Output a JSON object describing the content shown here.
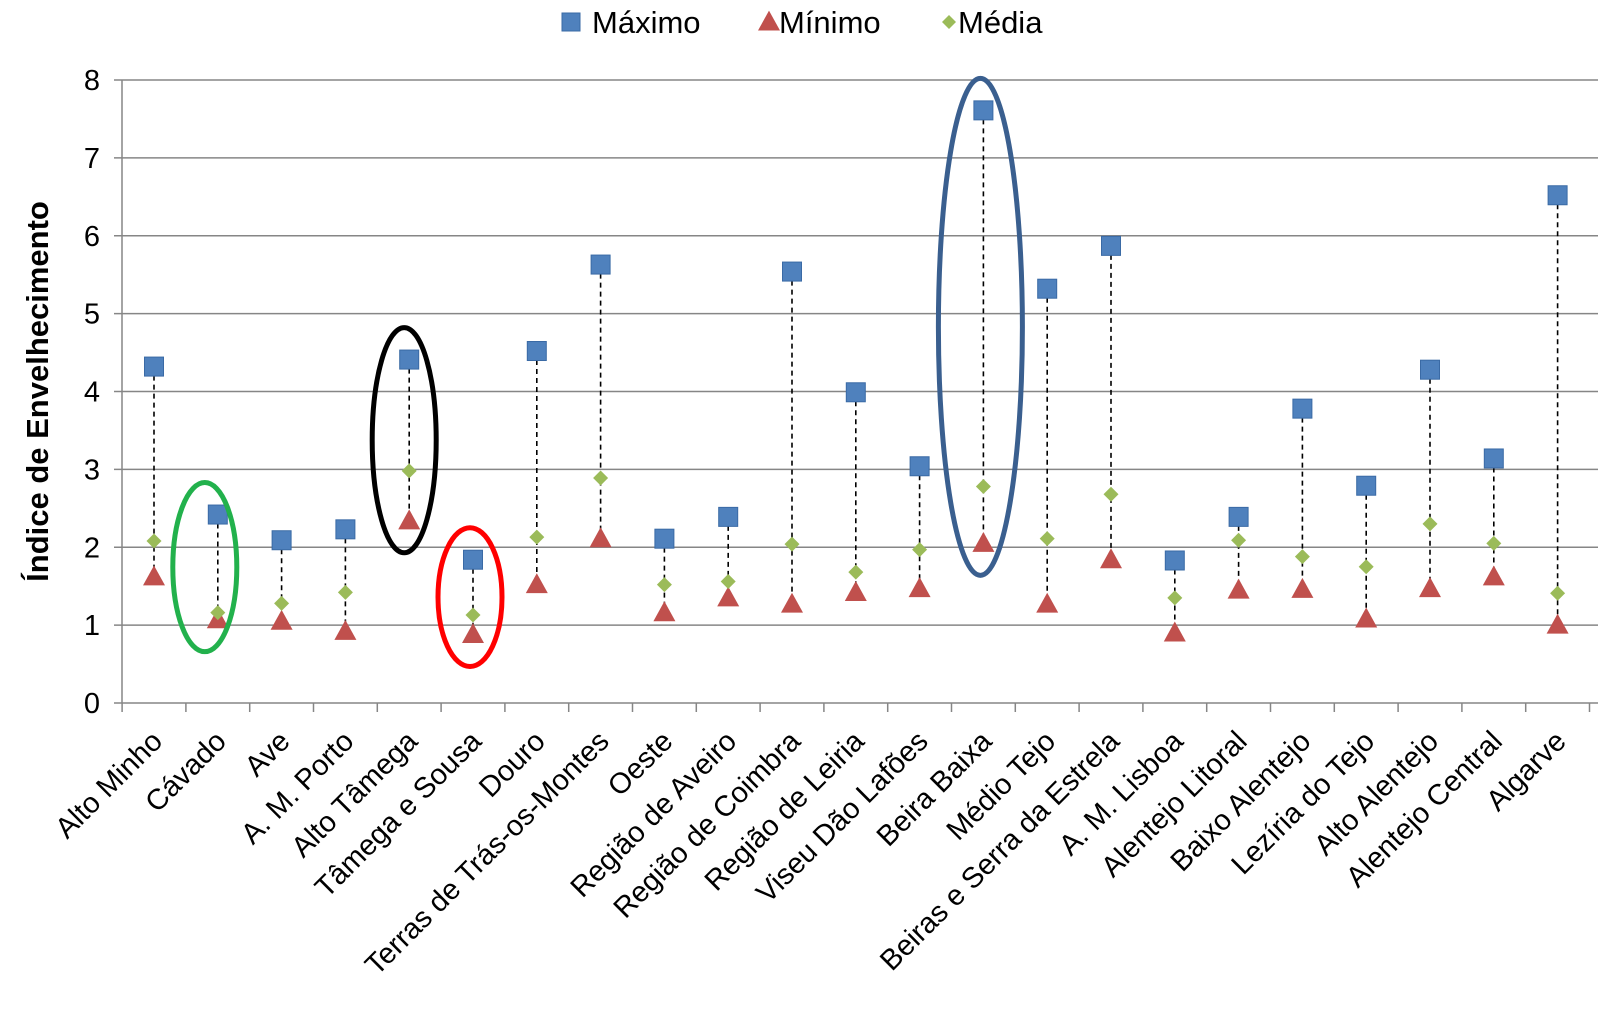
{
  "chart_data": {
    "type": "scatter",
    "title": "",
    "xlabel": "",
    "ylabel": "Índice de Envelhecimento",
    "ylim": [
      0,
      8
    ],
    "yticks": [
      0,
      1,
      2,
      3,
      4,
      5,
      6,
      7,
      8
    ],
    "grid": true,
    "legend": "top-center",
    "categories": [
      "Alto Minho",
      "Cávado",
      "Ave",
      "A. M. Porto",
      "Alto Tâmega",
      "Tâmega e Sousa",
      "Douro",
      "Terras de Trás-os-Montes",
      "Oeste",
      "Região de Aveiro",
      "Região de Coimbra",
      "Região de Leiria",
      "Viseu Dão Lafões",
      "Beira Baixa",
      "Médio Tejo",
      "Beiras e Serra da Estrela",
      "A. M. Lisboa",
      "Alentejo Litoral",
      "Baixo Alentejo",
      "Lezíria do Tejo",
      "Alto Alentejo",
      "Alentejo Central",
      "Algarve"
    ],
    "series": [
      {
        "name": "Máximo",
        "marker": "square",
        "color": "#4F81BD",
        "values": [
          4.32,
          2.42,
          2.09,
          2.23,
          4.41,
          1.84,
          4.52,
          5.63,
          2.11,
          2.39,
          5.54,
          3.99,
          3.04,
          7.61,
          5.32,
          5.87,
          1.83,
          2.39,
          3.78,
          2.79,
          4.28,
          3.14,
          6.52
        ]
      },
      {
        "name": "Mínimo",
        "marker": "triangle",
        "color": "#C0504D",
        "values": [
          1.62,
          1.07,
          1.05,
          0.92,
          2.34,
          0.88,
          1.52,
          2.11,
          1.16,
          1.35,
          1.27,
          1.42,
          1.47,
          2.05,
          1.27,
          1.84,
          0.9,
          1.45,
          1.46,
          1.08,
          1.47,
          1.62,
          1.0
        ]
      },
      {
        "name": "Média",
        "marker": "diamond",
        "color": "#9BBB59",
        "values": [
          2.08,
          1.16,
          1.28,
          1.42,
          2.98,
          1.13,
          2.13,
          2.89,
          1.52,
          1.56,
          2.04,
          1.68,
          1.97,
          2.78,
          2.11,
          2.68,
          1.35,
          2.09,
          1.88,
          1.75,
          2.3,
          2.05,
          1.41
        ]
      }
    ],
    "highlights": [
      {
        "category": "Cávado",
        "color": "#22B14C"
      },
      {
        "category": "Alto Tâmega",
        "color": "#000000"
      },
      {
        "category": "Tâmega e Sousa",
        "color": "#FF0000"
      },
      {
        "category": "Beira Baixa",
        "color": "#3A5F8F"
      }
    ]
  }
}
